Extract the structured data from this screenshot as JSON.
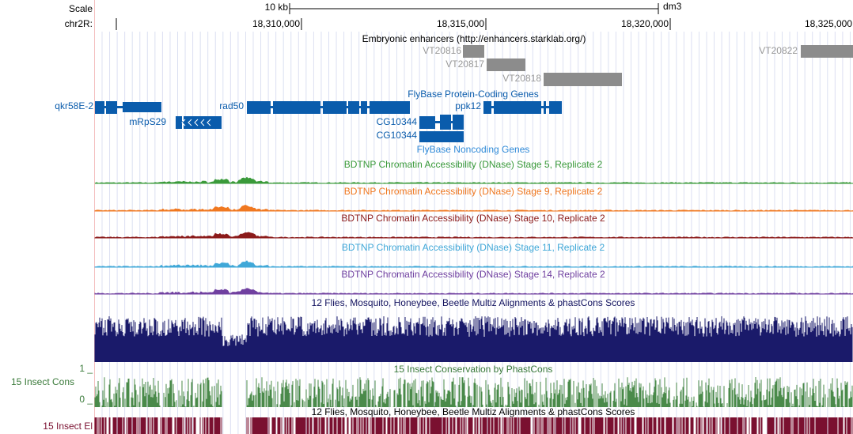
{
  "header": {
    "scale_label": "Scale",
    "scale_value": "10 kb",
    "assembly": "dm3",
    "chrom_label": "chr2R:",
    "positions": [
      "18,310,000",
      "18,315,000",
      "18,320,000",
      "18,325,000"
    ]
  },
  "enhancers": {
    "title": "Embryonic enhancers (http://enhancers.starklab.org/)",
    "items": [
      "VT20816",
      "VT20817",
      "VT20818",
      "VT20822"
    ]
  },
  "genes": {
    "title": "FlyBase Protein-Coding Genes",
    "items": [
      "qkr58E-2",
      "rad50",
      "ppk12",
      "mRpS29",
      "CG10344",
      "CG10344"
    ],
    "noncoding_title": "FlyBase Noncoding Genes"
  },
  "dnase": [
    "BDTNP Chromatin Accessibility (DNase) Stage 5, Replicate 2",
    "BDTNP Chromatin Accessibility (DNase) Stage 9, Replicate 2",
    "BDTNP Chromatin Accessibility (DNase) Stage 10, Replicate 2",
    "BDTNP Chromatin Accessibility (DNase) Stage 11, Replicate 2",
    "BDTNP Chromatin Accessibility (DNase) Stage 14, Replicate 2"
  ],
  "conservation": {
    "multiz_title": "12 Flies, Mosquito, Honeybee, Beetle Multiz Alignments & phastCons Scores",
    "phastcons_title": "15 Insect Conservation by PhastCons",
    "phastcons_label": "15 Insect Cons",
    "scale_max": "1 _",
    "scale_min": "0 _",
    "elements_title": "12 Flies, Mosquito, Honeybee, Beetle Multiz Alignments & phastCons Scores",
    "elements_label": "15 Insect El"
  }
}
